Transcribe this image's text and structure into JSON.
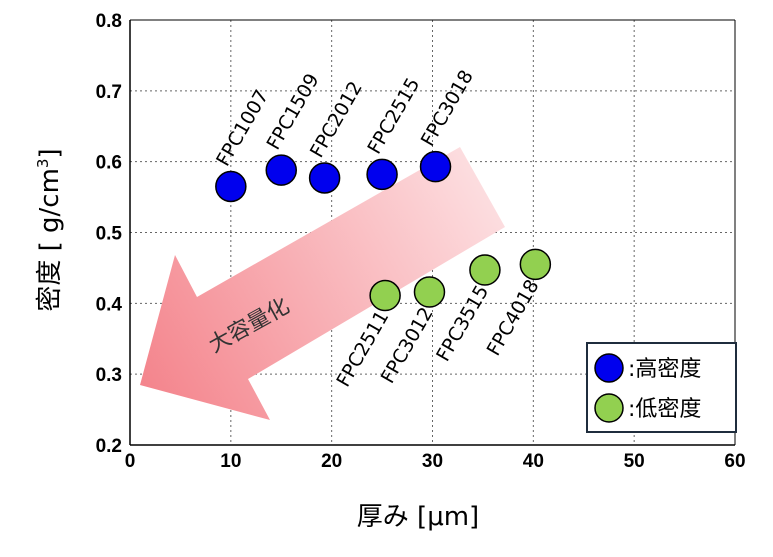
{
  "chart_data": {
    "type": "scatter",
    "xlabel": "厚み [μm]",
    "ylabel": "密度 [ g/cm",
    "ylabel_sup": "3",
    "ylabel_end": "]",
    "xlim": [
      0,
      60
    ],
    "ylim": [
      0.2,
      0.8
    ],
    "x_ticks": [
      "0",
      "10",
      "20",
      "30",
      "40",
      "50",
      "60"
    ],
    "y_ticks": [
      "0.2",
      "0.3",
      "0.4",
      "0.5",
      "0.6",
      "0.7",
      "0.8"
    ],
    "grid": true,
    "legend": "bottom-right",
    "annotation": "大容量化",
    "series": [
      {
        "name": ":高密度",
        "color": "#0000ee",
        "points": [
          {
            "label": "FPC1007",
            "x": 10,
            "y": 0.565
          },
          {
            "label": "FPC1509",
            "x": 15,
            "y": 0.588
          },
          {
            "label": "FPC2012",
            "x": 19.3,
            "y": 0.577
          },
          {
            "label": "FPC2515",
            "x": 25,
            "y": 0.582
          },
          {
            "label": "FPC3018",
            "x": 30.3,
            "y": 0.593
          }
        ]
      },
      {
        "name": ":低密度",
        "color": "#92d050",
        "points": [
          {
            "label": "FPC2511",
            "x": 25.3,
            "y": 0.411
          },
          {
            "label": "FPC3012",
            "x": 29.7,
            "y": 0.416
          },
          {
            "label": "FPC3515",
            "x": 35.2,
            "y": 0.447
          },
          {
            "label": "FPC4018",
            "x": 40.2,
            "y": 0.455
          }
        ]
      }
    ]
  }
}
